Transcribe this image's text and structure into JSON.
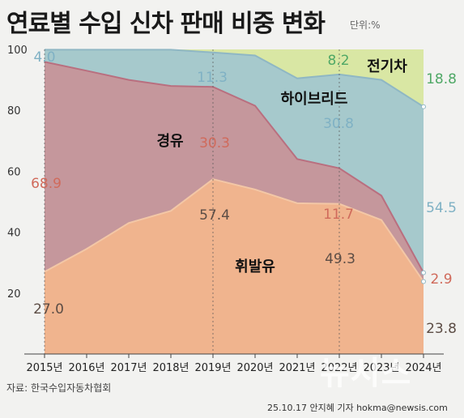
{
  "header": {
    "title": "연료별 수입 신차 판매 비중 변화",
    "unit": "단위:%"
  },
  "footer": {
    "source": "자료: 한국수입자동차협회",
    "byline": "25.10.17 안지혜 기자 hokma@newsis.com",
    "watermark": "뉴시스"
  },
  "colors": {
    "gasoline": "#f0b48e",
    "diesel": "#c5979c",
    "hybrid": "#a6c9cc",
    "electric": "#d9e7a4",
    "diesel_line": "#b96f7f",
    "gasoline_line": "#f3c7a6",
    "hybrid_line": "#8fb7c4",
    "label_gasoline": "#5c4d45",
    "label_diesel": "#d06a5b",
    "label_hybrid": "#7fb1c4",
    "label_electric": "#4fa866"
  },
  "chart_data": {
    "type": "area",
    "stacked": true,
    "x": [
      "2015년",
      "2016년",
      "2017년",
      "2018년",
      "2019년",
      "2020년",
      "2021년",
      "2022년",
      "2023년",
      "2024년"
    ],
    "ylim": [
      0,
      100
    ],
    "yticks": [
      20,
      40,
      60,
      80,
      100
    ],
    "series": [
      {
        "key": "gasoline",
        "name": "휘발유",
        "values": [
          27.0,
          34.5,
          43.0,
          47.0,
          57.4,
          54.0,
          49.5,
          49.3,
          44.0,
          23.8
        ]
      },
      {
        "key": "diesel",
        "name": "경유",
        "values": [
          68.9,
          58.5,
          47.0,
          41.0,
          30.3,
          27.5,
          14.5,
          11.7,
          8.0,
          2.9
        ]
      },
      {
        "key": "hybrid",
        "name": "하이브리드",
        "values": [
          4.0,
          6.9,
          9.9,
          11.9,
          11.3,
          16.5,
          26.5,
          30.8,
          38.0,
          54.5
        ]
      },
      {
        "key": "electric",
        "name": "전기차",
        "values": [
          0.1,
          0.1,
          0.1,
          0.1,
          1.0,
          2.0,
          9.5,
          8.2,
          10.0,
          18.8
        ]
      }
    ],
    "value_labels": [
      {
        "text": "4.0",
        "series": "hybrid"
      },
      {
        "text": "68.9",
        "series": "diesel"
      },
      {
        "text": "27.0",
        "series": "gasoline"
      },
      {
        "text": "11.3",
        "series": "hybrid"
      },
      {
        "text": "30.3",
        "series": "diesel"
      },
      {
        "text": "57.4",
        "series": "gasoline"
      },
      {
        "text": "8.2",
        "series": "electric"
      },
      {
        "text": "30.8",
        "series": "hybrid"
      },
      {
        "text": "11.7",
        "series": "diesel"
      },
      {
        "text": "49.3",
        "series": "gasoline"
      },
      {
        "text": "18.8",
        "series": "electric"
      },
      {
        "text": "54.5",
        "series": "hybrid"
      },
      {
        "text": "2.9",
        "series": "diesel"
      },
      {
        "text": "23.8",
        "series": "gasoline"
      }
    ]
  }
}
